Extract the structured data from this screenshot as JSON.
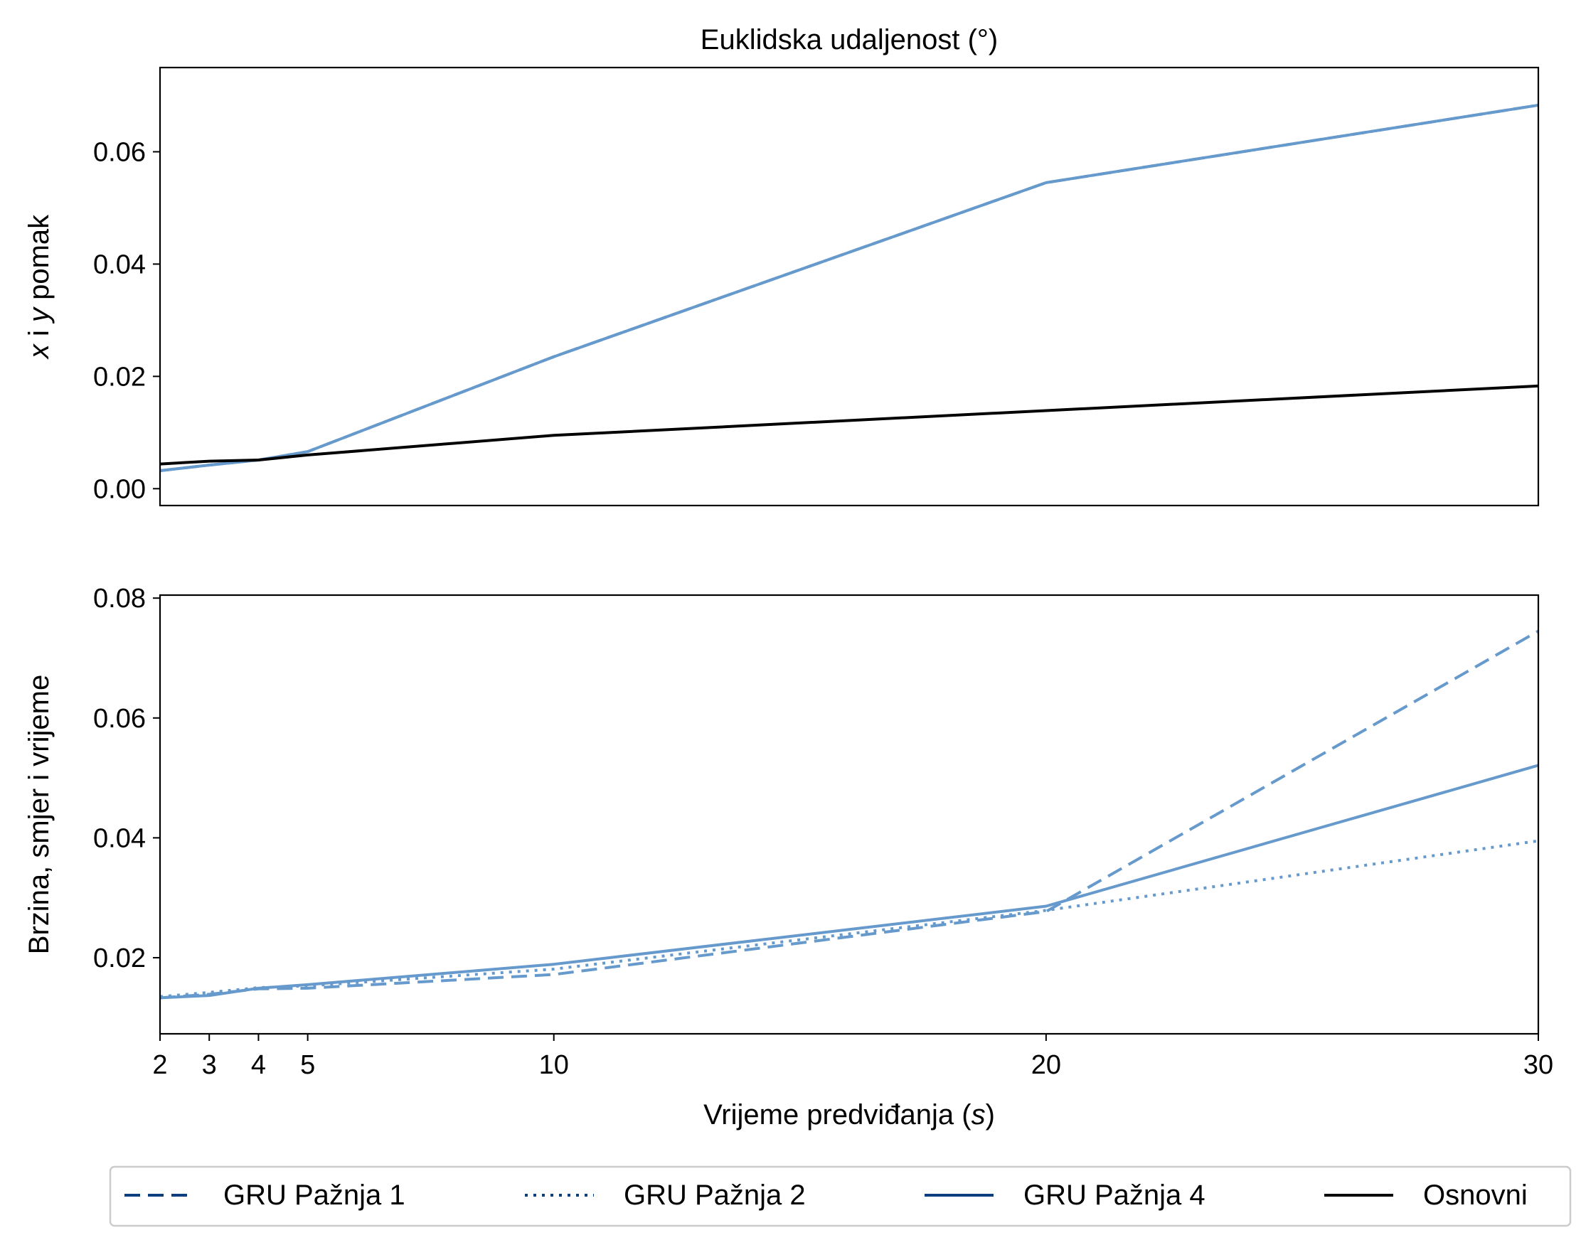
{
  "colors": {
    "model": "#6699cc",
    "legend_model": "#0d3f80",
    "baseline": "#000000",
    "frame": "#000000"
  },
  "legend": {
    "items": [
      {
        "label": "GRU Pažnja 1",
        "style": "dashed"
      },
      {
        "label": "GRU Pažnja 2",
        "style": "dotted"
      },
      {
        "label": "GRU Pažnja 4",
        "style": "solid"
      },
      {
        "label": "Osnovni",
        "style": "baseline"
      }
    ]
  },
  "chart_data": [
    {
      "type": "line",
      "title": "Euklidska udaljenost (°)",
      "xlabel": "",
      "ylabel_parts": [
        {
          "text": "x",
          "italic": true
        },
        {
          "text": " i ",
          "italic": false
        },
        {
          "text": "y",
          "italic": true
        },
        {
          "text": " pomak",
          "italic": false
        }
      ],
      "x": [
        2,
        3,
        4,
        5,
        10,
        20,
        30
      ],
      "xlim": [
        2,
        30
      ],
      "ylim": [
        -0.003,
        0.075
      ],
      "yticks": [
        0.0,
        0.02,
        0.04,
        0.06
      ],
      "ytick_labels": [
        "0.00",
        "0.02",
        "0.04",
        "0.06"
      ],
      "show_xticks": false,
      "series": [
        {
          "name": "GRU Pažnja 1",
          "style": "dashed",
          "color": "#6699cc",
          "values": [
            0.0032,
            0.0042,
            0.0051,
            0.0066,
            0.0235,
            0.0545,
            0.0683
          ]
        },
        {
          "name": "GRU Pažnja 2",
          "style": "dotted",
          "color": "#6699cc",
          "values": [
            0.0032,
            0.0042,
            0.0051,
            0.0066,
            0.0235,
            0.0545,
            0.0683
          ]
        },
        {
          "name": "GRU Pažnja 4",
          "style": "solid",
          "color": "#6699cc",
          "values": [
            0.0032,
            0.0042,
            0.0051,
            0.0066,
            0.0235,
            0.0545,
            0.0683
          ]
        },
        {
          "name": "Osnovni",
          "style": "solid",
          "color": "#000000",
          "values": [
            0.0044,
            0.0049,
            0.0051,
            0.006,
            0.0095,
            0.0139,
            0.0183
          ]
        }
      ]
    },
    {
      "type": "line",
      "title": "",
      "xlabel_parts": [
        {
          "text": "Vrijeme predviđanja (",
          "italic": false
        },
        {
          "text": "s",
          "italic": true
        },
        {
          "text": ")",
          "italic": false
        }
      ],
      "ylabel": "Brzina, smjer i vrijeme",
      "x": [
        2,
        3,
        4,
        5,
        10,
        20,
        30
      ],
      "xlim": [
        2,
        30
      ],
      "xticks": [
        2,
        3,
        4,
        5,
        10,
        20,
        30
      ],
      "xtick_labels": [
        "2",
        "3",
        "4",
        "5",
        "10",
        "20",
        "30"
      ],
      "ylim": [
        0.0073,
        0.0805
      ],
      "yticks": [
        0.02,
        0.04,
        0.06,
        0.08
      ],
      "ytick_labels": [
        "0.02",
        "0.04",
        "0.06",
        "0.08"
      ],
      "show_xticks": true,
      "series": [
        {
          "name": "GRU Pažnja 1",
          "style": "dashed",
          "color": "#6699cc",
          "values": [
            0.0133,
            0.0139,
            0.0148,
            0.0149,
            0.0172,
            0.0277,
            0.0745
          ]
        },
        {
          "name": "GRU Pažnja 2",
          "style": "dotted",
          "color": "#6699cc",
          "values": [
            0.0135,
            0.0142,
            0.015,
            0.0153,
            0.0181,
            0.0279,
            0.0395
          ]
        },
        {
          "name": "GRU Pažnja 4",
          "style": "solid",
          "color": "#6699cc",
          "values": [
            0.0133,
            0.0137,
            0.0149,
            0.0155,
            0.0189,
            0.0286,
            0.0521
          ]
        }
      ]
    }
  ]
}
